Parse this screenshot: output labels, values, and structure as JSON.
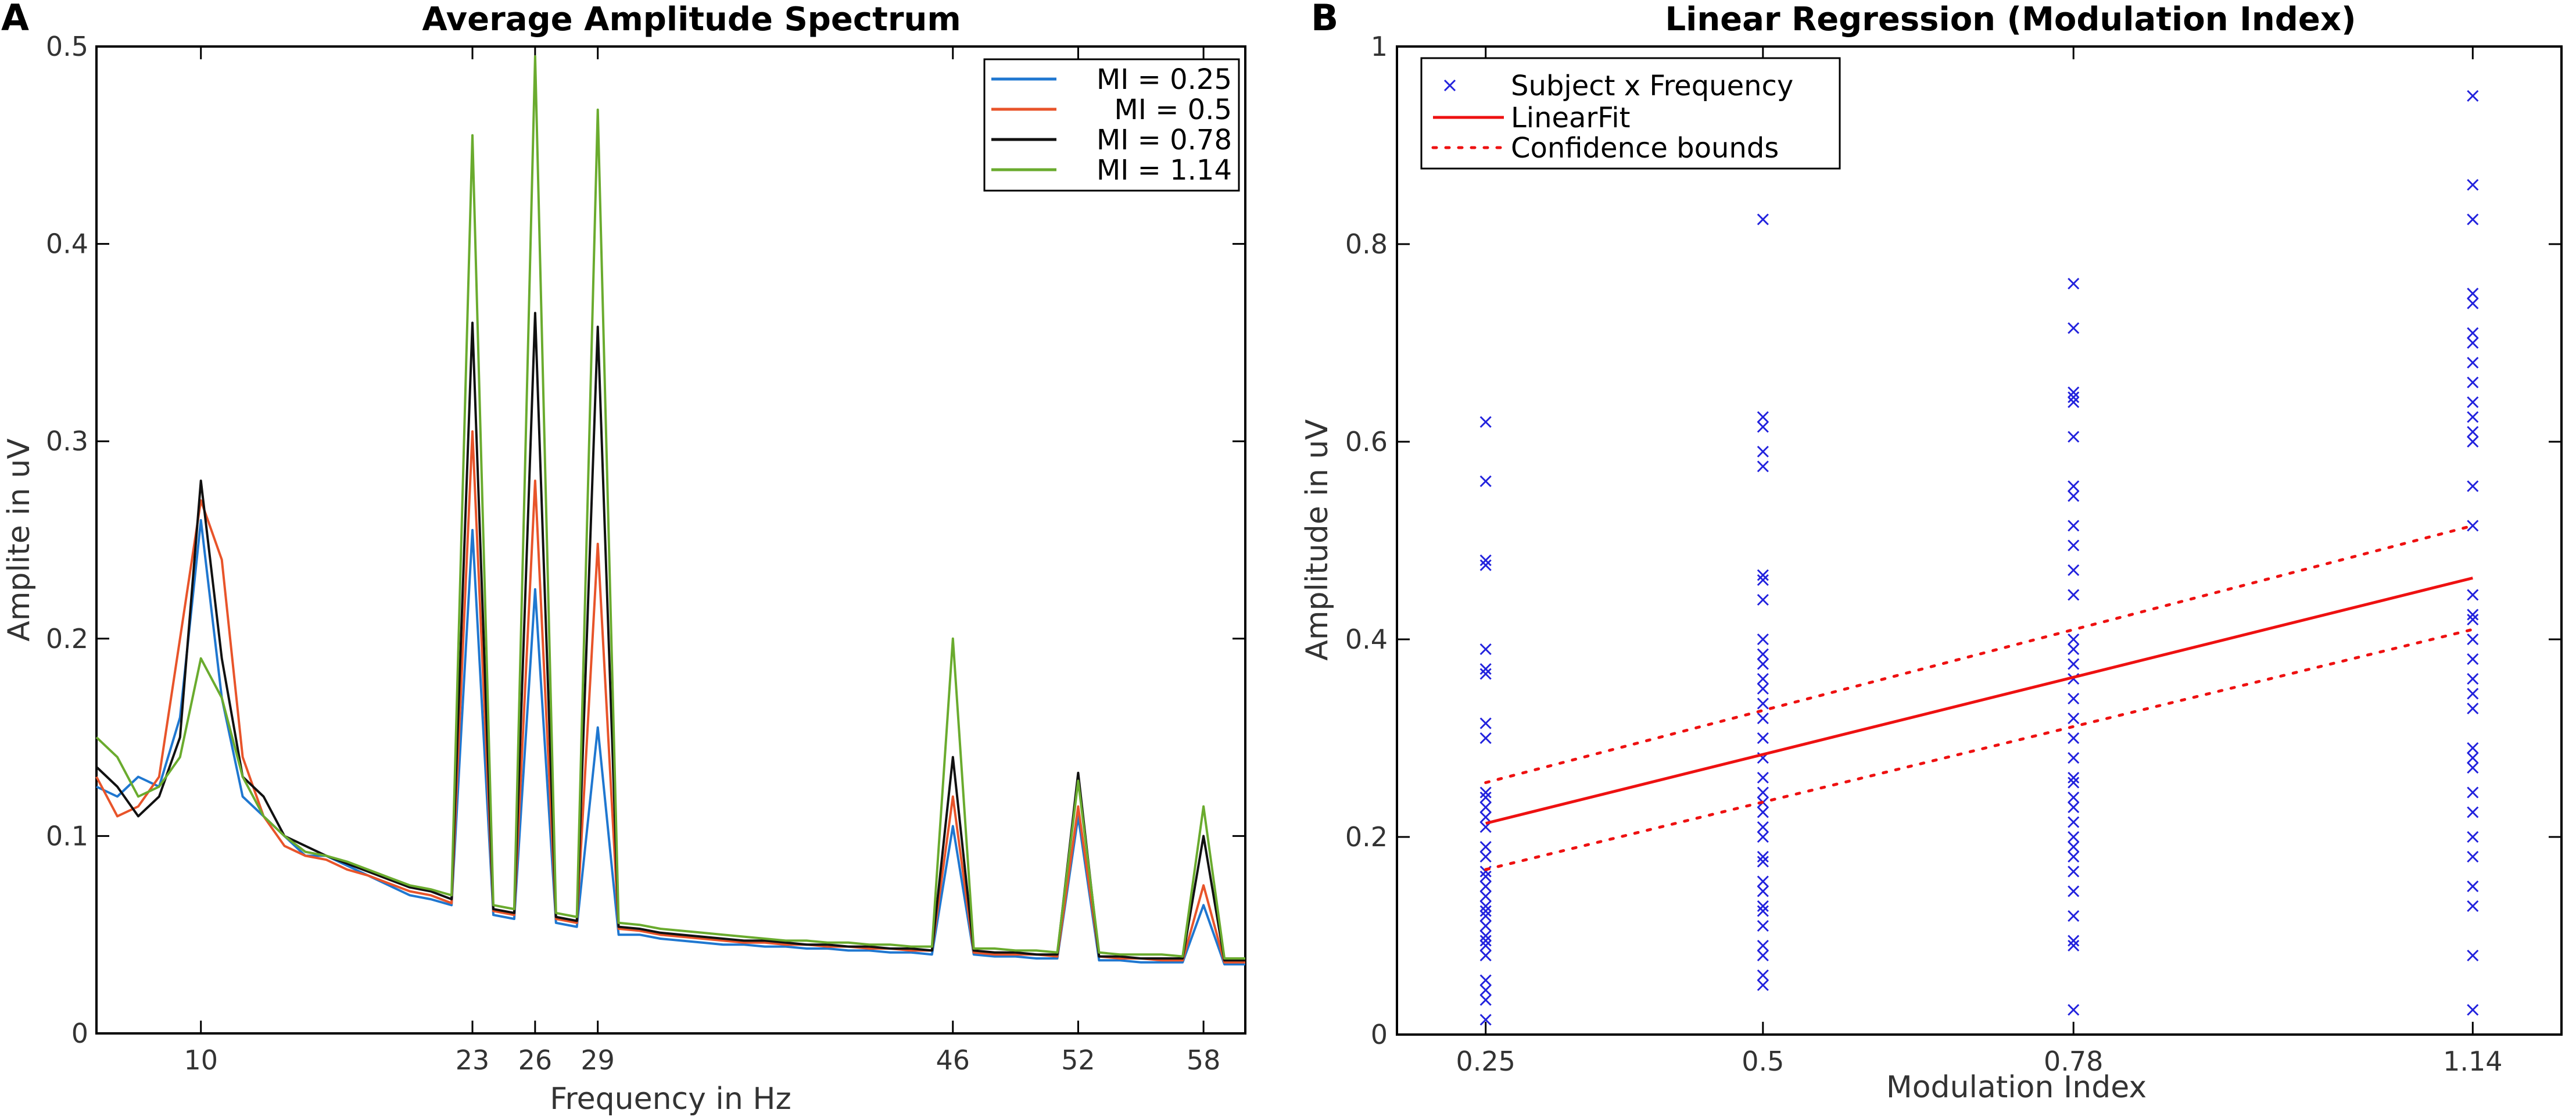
{
  "chart_data": [
    {
      "panel_letter": "A",
      "type": "line",
      "title": "Average Amplitude Spectrum",
      "xlabel": "Frequency in Hz",
      "ylabel": "Amplite in uV",
      "xlim": [
        5,
        60
      ],
      "ylim": [
        0,
        0.5
      ],
      "xticks": [
        10,
        23,
        26,
        29,
        46,
        52,
        58
      ],
      "xtick_labels": [
        "10",
        "23",
        "26",
        "29",
        "46",
        "52",
        "58"
      ],
      "yticks": [
        0,
        0.1,
        0.2,
        0.3,
        0.4,
        0.5
      ],
      "ytick_labels": [
        "0",
        "0.1",
        "0.2",
        "0.3",
        "0.4",
        "0.5"
      ],
      "legend_position": "top-right",
      "legend": [
        "MI = 0.25",
        "MI = 0.5",
        "MI = 0.78",
        "MI = 1.14"
      ],
      "x": [
        5,
        6,
        7,
        8,
        9,
        10,
        11,
        12,
        13,
        14,
        15,
        16,
        17,
        18,
        19,
        20,
        21,
        22,
        23,
        24,
        25,
        26,
        27,
        28,
        29,
        30,
        31,
        32,
        33,
        34,
        35,
        36,
        37,
        38,
        39,
        40,
        41,
        42,
        43,
        44,
        45,
        46,
        47,
        48,
        49,
        50,
        51,
        52,
        53,
        54,
        55,
        56,
        57,
        58,
        59,
        60
      ],
      "series": [
        {
          "name": "MI = 0.25",
          "color": "#1f77d0",
          "values": [
            0.125,
            0.12,
            0.13,
            0.125,
            0.16,
            0.26,
            0.17,
            0.12,
            0.11,
            0.1,
            0.09,
            0.09,
            0.085,
            0.08,
            0.075,
            0.07,
            0.068,
            0.065,
            0.255,
            0.06,
            0.058,
            0.225,
            0.056,
            0.054,
            0.155,
            0.05,
            0.05,
            0.048,
            0.047,
            0.046,
            0.045,
            0.045,
            0.044,
            0.044,
            0.043,
            0.043,
            0.042,
            0.042,
            0.041,
            0.041,
            0.04,
            0.105,
            0.04,
            0.039,
            0.039,
            0.038,
            0.038,
            0.11,
            0.037,
            0.037,
            0.036,
            0.036,
            0.036,
            0.065,
            0.035,
            0.035
          ]
        },
        {
          "name": "MI = 0.5",
          "color": "#e8542a",
          "values": [
            0.13,
            0.11,
            0.115,
            0.13,
            0.2,
            0.27,
            0.24,
            0.14,
            0.11,
            0.095,
            0.09,
            0.088,
            0.083,
            0.08,
            0.076,
            0.072,
            0.07,
            0.066,
            0.305,
            0.062,
            0.06,
            0.28,
            0.058,
            0.056,
            0.248,
            0.053,
            0.052,
            0.05,
            0.049,
            0.048,
            0.047,
            0.046,
            0.046,
            0.045,
            0.045,
            0.044,
            0.044,
            0.043,
            0.043,
            0.042,
            0.042,
            0.12,
            0.041,
            0.04,
            0.04,
            0.04,
            0.039,
            0.115,
            0.039,
            0.038,
            0.038,
            0.037,
            0.037,
            0.075,
            0.036,
            0.036
          ]
        },
        {
          "name": "MI = 0.78",
          "color": "#111111",
          "values": [
            0.135,
            0.125,
            0.11,
            0.12,
            0.15,
            0.28,
            0.19,
            0.13,
            0.12,
            0.1,
            0.095,
            0.09,
            0.086,
            0.082,
            0.078,
            0.074,
            0.072,
            0.068,
            0.36,
            0.063,
            0.061,
            0.365,
            0.059,
            0.057,
            0.358,
            0.054,
            0.053,
            0.051,
            0.05,
            0.049,
            0.048,
            0.047,
            0.047,
            0.046,
            0.045,
            0.045,
            0.044,
            0.044,
            0.043,
            0.043,
            0.042,
            0.14,
            0.042,
            0.041,
            0.041,
            0.04,
            0.04,
            0.132,
            0.039,
            0.039,
            0.038,
            0.038,
            0.038,
            0.1,
            0.037,
            0.037
          ]
        },
        {
          "name": "MI = 1.14",
          "color": "#6aab2e",
          "values": [
            0.15,
            0.14,
            0.12,
            0.125,
            0.14,
            0.19,
            0.17,
            0.13,
            0.11,
            0.1,
            0.092,
            0.09,
            0.087,
            0.083,
            0.079,
            0.075,
            0.073,
            0.07,
            0.455,
            0.065,
            0.063,
            0.495,
            0.061,
            0.059,
            0.468,
            0.056,
            0.055,
            0.053,
            0.052,
            0.051,
            0.05,
            0.049,
            0.048,
            0.047,
            0.047,
            0.046,
            0.046,
            0.045,
            0.045,
            0.044,
            0.044,
            0.2,
            0.043,
            0.043,
            0.042,
            0.042,
            0.041,
            0.128,
            0.041,
            0.04,
            0.04,
            0.04,
            0.039,
            0.115,
            0.038,
            0.038
          ]
        }
      ]
    },
    {
      "panel_letter": "B",
      "type": "scatter",
      "title": "Linear Regression (Modulation Index)",
      "xlabel": "Modulation Index",
      "ylabel": "Amplitude in uV",
      "xlim": [
        0.17,
        1.22
      ],
      "ylim": [
        0,
        1
      ],
      "xticks": [
        0.25,
        0.5,
        0.78,
        1.14
      ],
      "xtick_labels": [
        "0.25",
        "0.5",
        "0.78",
        "1.14"
      ],
      "yticks": [
        0,
        0.2,
        0.4,
        0.6,
        0.8,
        1
      ],
      "ytick_labels": [
        "0",
        "0.2",
        "0.4",
        "0.6",
        "0.8",
        "1"
      ],
      "legend_position": "top-left",
      "legend": [
        "Subject x Frequency",
        "LinearFit",
        "Confidence bounds"
      ],
      "scatter_color": "#2222dd",
      "fit_color": "#ee1111",
      "points": [
        {
          "x": 0.25,
          "y": [
            0.62,
            0.56,
            0.48,
            0.475,
            0.39,
            0.37,
            0.365,
            0.315,
            0.3,
            0.245,
            0.24,
            0.23,
            0.22,
            0.21,
            0.19,
            0.18,
            0.165,
            0.16,
            0.15,
            0.14,
            0.13,
            0.125,
            0.12,
            0.11,
            0.1,
            0.095,
            0.09,
            0.08,
            0.055,
            0.045,
            0.035,
            0.015
          ]
        },
        {
          "x": 0.5,
          "y": [
            0.825,
            0.625,
            0.615,
            0.59,
            0.575,
            0.465,
            0.46,
            0.44,
            0.4,
            0.385,
            0.375,
            0.36,
            0.35,
            0.335,
            0.32,
            0.3,
            0.28,
            0.26,
            0.245,
            0.235,
            0.225,
            0.21,
            0.2,
            0.18,
            0.175,
            0.155,
            0.145,
            0.13,
            0.125,
            0.11,
            0.09,
            0.08,
            0.06,
            0.05
          ]
        },
        {
          "x": 0.78,
          "y": [
            0.76,
            0.715,
            0.65,
            0.645,
            0.64,
            0.605,
            0.555,
            0.545,
            0.515,
            0.495,
            0.47,
            0.445,
            0.4,
            0.39,
            0.375,
            0.36,
            0.34,
            0.32,
            0.3,
            0.28,
            0.26,
            0.255,
            0.24,
            0.23,
            0.215,
            0.2,
            0.19,
            0.18,
            0.165,
            0.145,
            0.12,
            0.095,
            0.09,
            0.025
          ]
        },
        {
          "x": 1.14,
          "y": [
            0.95,
            0.86,
            0.825,
            0.75,
            0.74,
            0.71,
            0.7,
            0.68,
            0.66,
            0.64,
            0.625,
            0.61,
            0.6,
            0.555,
            0.515,
            0.445,
            0.425,
            0.42,
            0.4,
            0.38,
            0.36,
            0.345,
            0.33,
            0.29,
            0.28,
            0.27,
            0.245,
            0.225,
            0.2,
            0.18,
            0.15,
            0.13,
            0.08,
            0.025
          ]
        }
      ],
      "fit": {
        "slope": 0.279,
        "intercept": 0.144
      },
      "confidence_band": [
        {
          "x": 0.25,
          "upper": 0.255,
          "lower": 0.167
        },
        {
          "x": 1.14,
          "upper": 0.515,
          "lower": 0.41
        }
      ]
    }
  ]
}
